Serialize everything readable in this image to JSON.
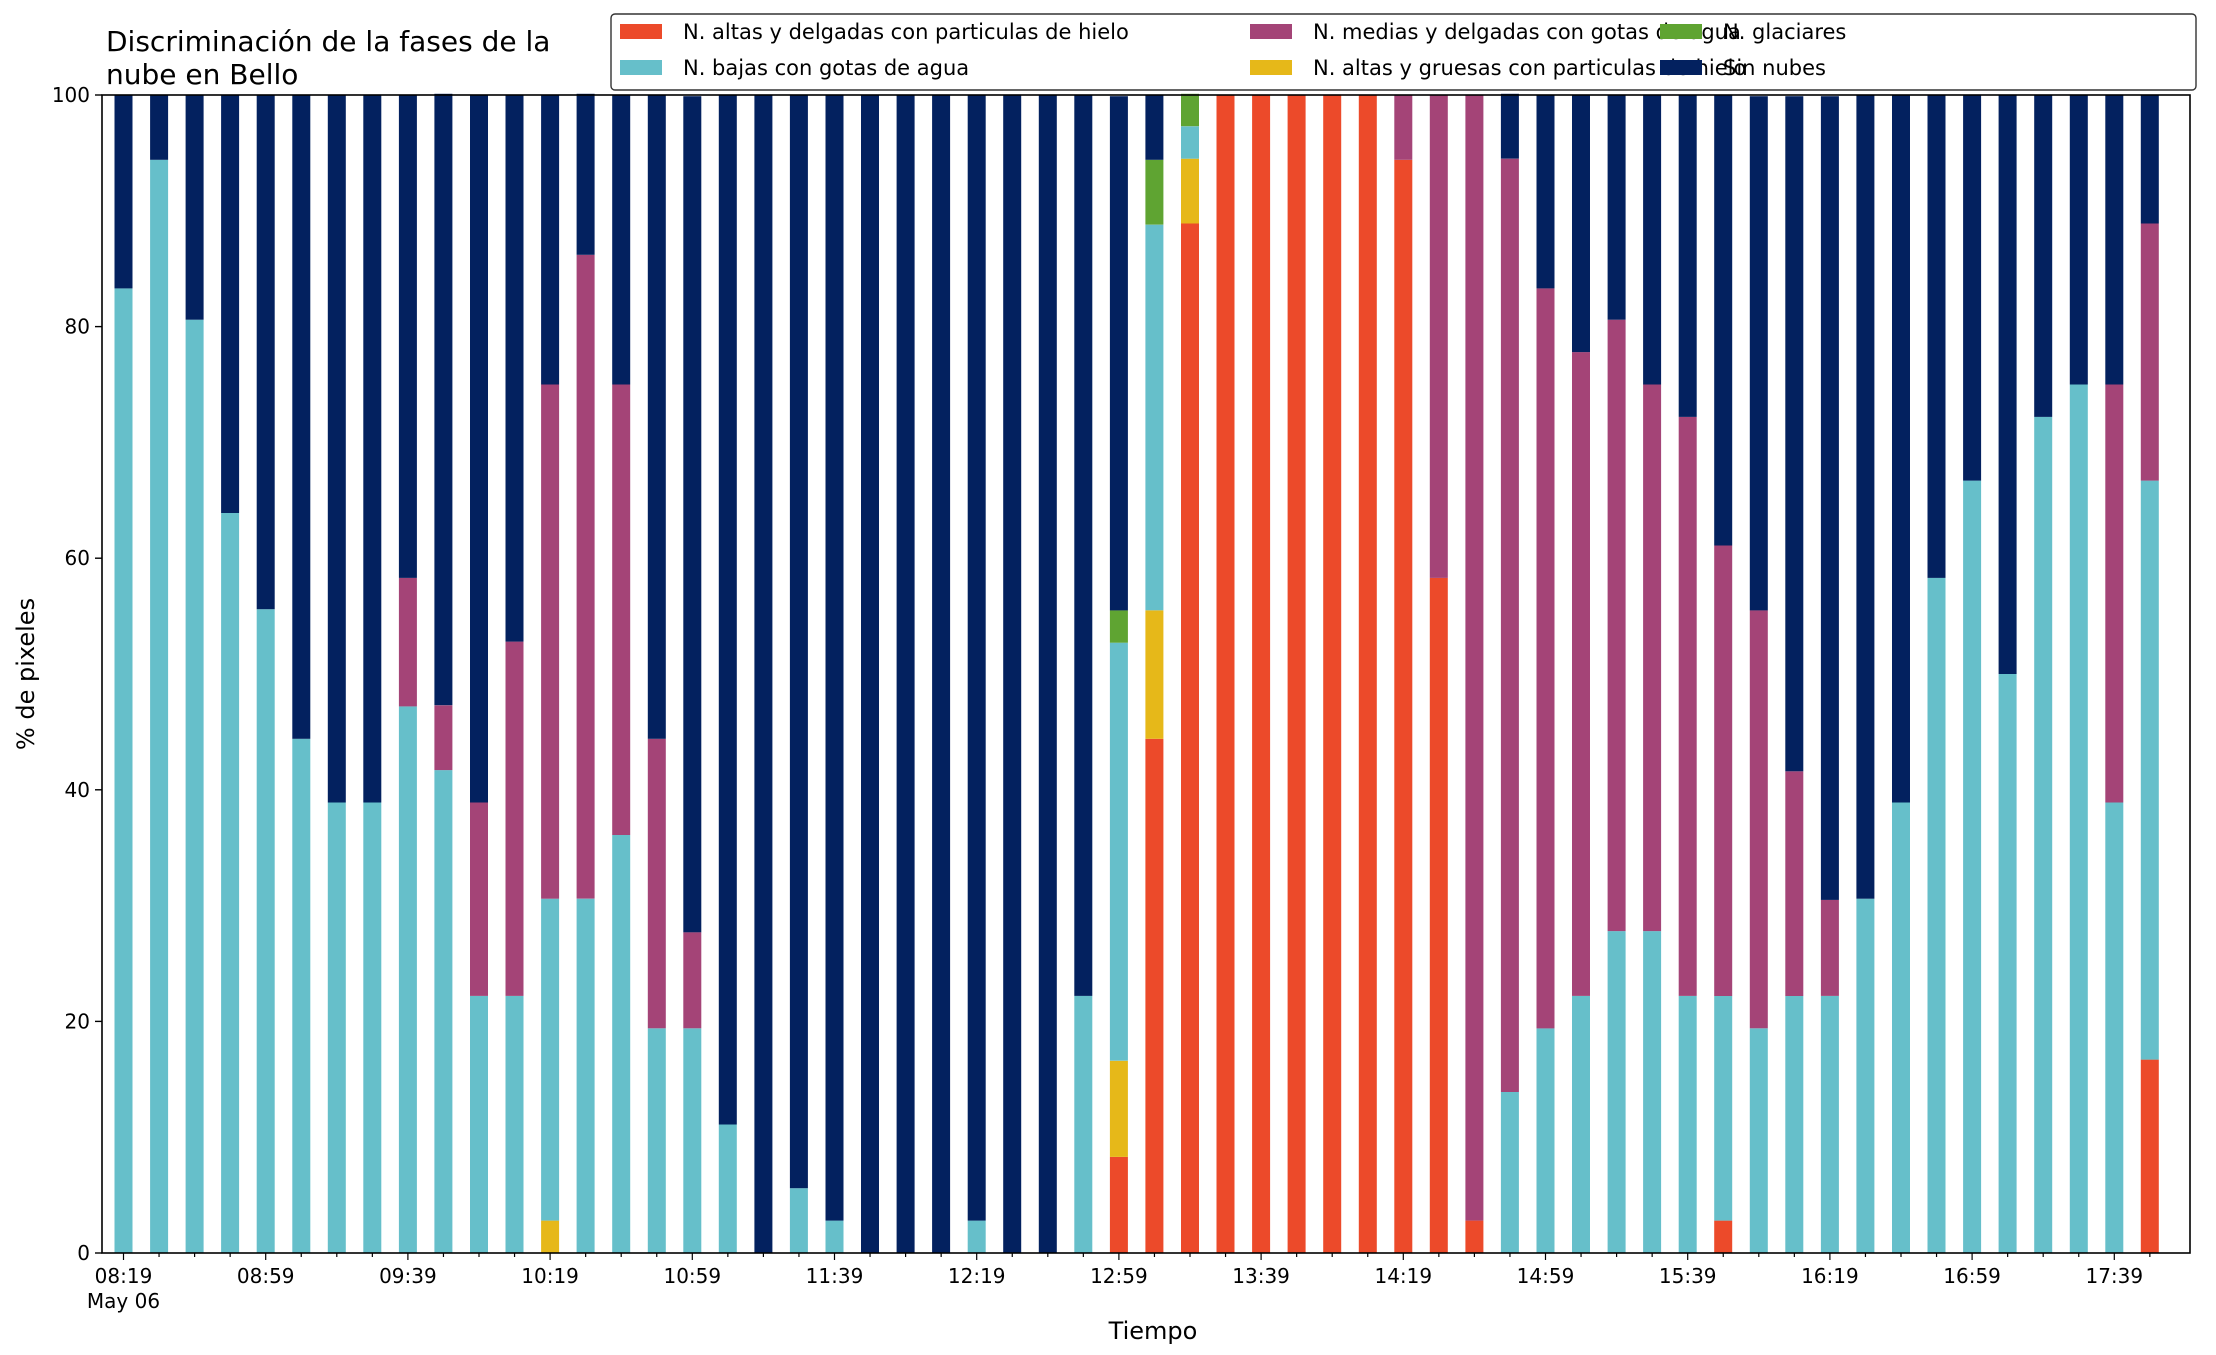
{
  "chart_data": {
    "type": "bar",
    "stacked": true,
    "title": "Discriminación de la fases de la\nnube en Bello",
    "xlabel": "Tiempo",
    "ylabel": "% de pixeles",
    "ylim": [
      0,
      100
    ],
    "yticks": [
      0,
      20,
      40,
      60,
      80,
      100
    ],
    "xtick_labels": [
      "08:19",
      "08:59",
      "09:39",
      "10:19",
      "10:59",
      "11:39",
      "12:19",
      "12:59",
      "13:39",
      "14:19",
      "14:59",
      "15:39",
      "16:19",
      "16:59",
      "17:39"
    ],
    "xtick_sublabel": "May 06",
    "legend_position": "top-right",
    "grid": false,
    "categories": [
      "08:19",
      "08:29",
      "08:39",
      "08:49",
      "08:59",
      "09:09",
      "09:19",
      "09:29",
      "09:39",
      "09:49",
      "09:59",
      "10:09",
      "10:19",
      "10:29",
      "10:39",
      "10:49",
      "10:59",
      "11:09",
      "11:19",
      "11:29",
      "11:39",
      "11:49",
      "11:59",
      "12:09",
      "12:19",
      "12:29",
      "12:39",
      "12:49",
      "12:59",
      "13:09",
      "13:19",
      "13:29",
      "13:39",
      "13:49",
      "13:59",
      "14:09",
      "14:19",
      "14:29",
      "14:39",
      "14:49",
      "14:59",
      "15:09",
      "15:19",
      "15:29",
      "15:39",
      "15:49",
      "15:59",
      "16:09",
      "16:19",
      "16:29",
      "16:39",
      "16:49",
      "16:59",
      "17:09",
      "17:19",
      "17:29",
      "17:39",
      "17:49"
    ],
    "series": [
      {
        "name": "N. altas y delgadas con particulas de hielo",
        "color": "#ec4a2a",
        "values": [
          0,
          0,
          0,
          0,
          0,
          0,
          0,
          0,
          0,
          0,
          0,
          0,
          0,
          0,
          0,
          0,
          0,
          0,
          0,
          0,
          0,
          0,
          0,
          0,
          0,
          0,
          0,
          0,
          8.3,
          44.4,
          88.9,
          100,
          100,
          100,
          100,
          100,
          94.4,
          58.3,
          2.8,
          0,
          0,
          0,
          0,
          0,
          0,
          2.8,
          0,
          0,
          0,
          0,
          0,
          0,
          0,
          0,
          0,
          0,
          0,
          16.7
        ]
      },
      {
        "name": "N. altas y gruesas con particulas de hielo",
        "color": "#e6b819",
        "values": [
          0,
          0,
          0,
          0,
          0,
          0,
          0,
          0,
          0,
          0,
          0,
          0,
          2.8,
          0,
          0,
          0,
          0,
          0,
          0,
          0,
          0,
          0,
          0,
          0,
          0,
          0,
          0,
          0,
          8.3,
          11.1,
          5.6,
          0,
          0,
          0,
          0,
          0,
          0,
          0,
          0,
          0,
          0,
          0,
          0,
          0,
          0,
          0,
          0,
          0,
          0,
          0,
          0,
          0,
          0,
          0,
          0,
          0,
          0,
          0
        ]
      },
      {
        "name": "N. bajas con gotas de agua",
        "color": "#66bfca",
        "values": [
          83.3,
          94.4,
          80.6,
          63.9,
          55.6,
          44.4,
          38.9,
          38.9,
          47.2,
          41.7,
          22.2,
          22.2,
          27.8,
          30.6,
          36.1,
          19.4,
          19.4,
          11.1,
          0,
          5.6,
          2.8,
          0,
          0,
          0,
          2.8,
          0,
          0,
          22.2,
          36.1,
          33.3,
          2.8,
          0,
          0,
          0,
          0,
          0,
          0,
          0,
          0,
          13.9,
          19.4,
          22.2,
          27.8,
          27.8,
          22.2,
          19.4,
          19.4,
          22.2,
          22.2,
          30.6,
          38.9,
          58.3,
          66.7,
          50.0,
          72.2,
          75.0,
          38.9,
          50.0
        ]
      },
      {
        "name": "N. glaciares",
        "color": "#5fa432",
        "values": [
          0,
          0,
          0,
          0,
          0,
          0,
          0,
          0,
          0,
          0,
          0,
          0,
          0,
          0,
          0,
          0,
          0,
          0,
          0,
          0,
          0,
          0,
          0,
          0,
          0,
          0,
          0,
          0,
          2.8,
          5.6,
          2.8,
          0,
          0,
          0,
          0,
          0,
          0,
          0,
          0,
          0,
          0,
          0,
          0,
          0,
          0,
          0,
          0,
          0,
          0,
          0,
          0,
          0,
          0,
          0,
          0,
          0,
          0,
          0
        ]
      },
      {
        "name": "N. medias y delgadas con gotas de agua",
        "color": "#a44477",
        "values": [
          0,
          0,
          0,
          0,
          0,
          0,
          0,
          0,
          11.1,
          5.6,
          16.7,
          30.6,
          44.4,
          55.6,
          38.9,
          25.0,
          8.3,
          0,
          0,
          0,
          0,
          0,
          0,
          0,
          0,
          0,
          0,
          0,
          0,
          0,
          0,
          0,
          0,
          0,
          0,
          0,
          5.6,
          41.7,
          97.2,
          80.6,
          63.9,
          55.6,
          52.8,
          47.2,
          50.0,
          38.9,
          36.1,
          19.4,
          8.3,
          0,
          0,
          0,
          0,
          0,
          0,
          0,
          36.1,
          22.2
        ]
      },
      {
        "name": "Sin nubes",
        "color": "#03215f",
        "values": [
          16.7,
          5.6,
          19.4,
          36.1,
          44.4,
          55.6,
          61.1,
          61.1,
          41.7,
          52.8,
          61.1,
          47.2,
          25.0,
          13.9,
          25.0,
          55.6,
          72.2,
          88.9,
          100,
          94.4,
          97.2,
          100,
          100,
          100,
          97.2,
          100,
          100,
          77.8,
          44.4,
          5.6,
          0,
          0,
          0,
          0,
          0,
          0,
          0,
          0,
          0,
          5.6,
          16.7,
          22.2,
          19.4,
          25.0,
          27.8,
          38.9,
          44.4,
          58.3,
          69.4,
          69.4,
          61.1,
          41.7,
          33.3,
          50.0,
          27.8,
          25.0,
          25.0,
          11.1
        ]
      }
    ]
  }
}
